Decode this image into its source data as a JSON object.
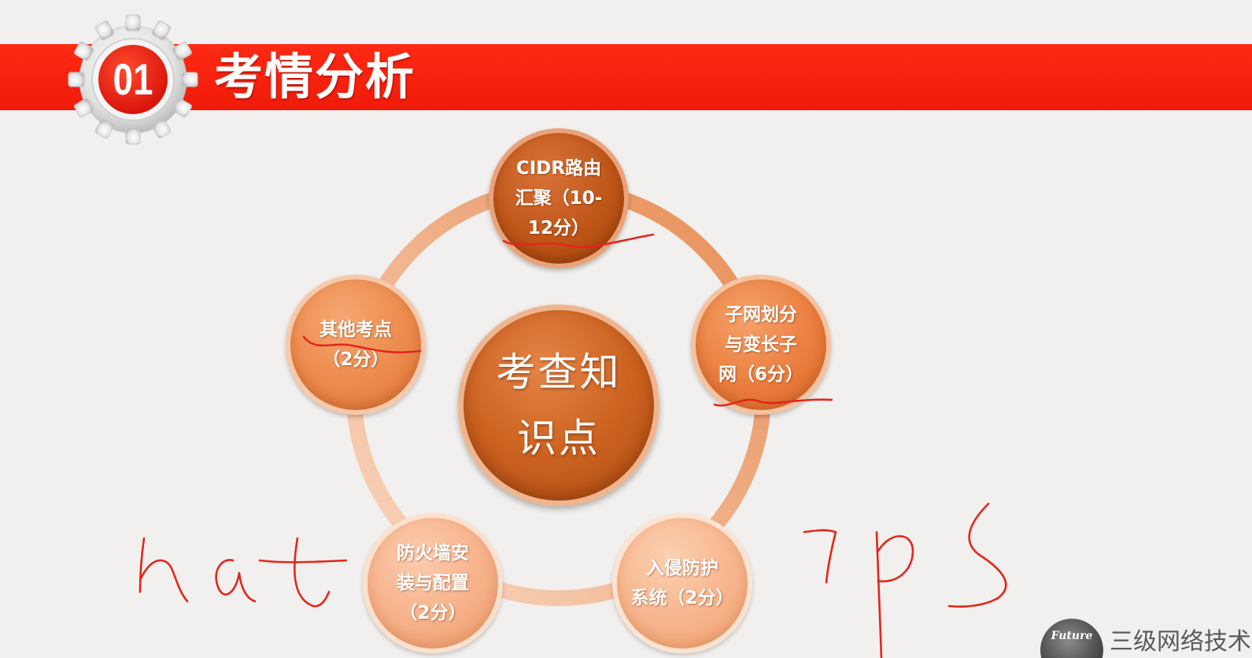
{
  "header": {
    "section_number": "01",
    "title": "考情分析"
  },
  "diagram": {
    "center": "考查知\n识点",
    "nodes": [
      {
        "id": "cidr",
        "label": "CIDR路由\n汇聚（10-\n12分）"
      },
      {
        "id": "subnet",
        "label": "子网划分\n与变长子\n网（6分）"
      },
      {
        "id": "ids",
        "label": "入侵防护\n系统（2分）"
      },
      {
        "id": "firewall",
        "label": "防火墙安\n装与配置\n（2分）"
      },
      {
        "id": "other",
        "label": "其他考点\n（2分）"
      }
    ]
  },
  "handwriting": {
    "left": "nat",
    "right": "ips",
    "color": "#e3261c"
  },
  "footer": {
    "badge": "Future",
    "org": "三级网络技术"
  },
  "colors": {
    "banner": "#f7220e",
    "accent_dark": "#bf5618",
    "accent_light": "#f7b48b"
  }
}
